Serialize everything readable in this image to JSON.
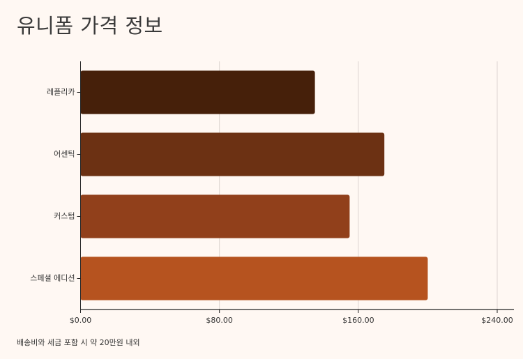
{
  "chart_data": {
    "type": "bar",
    "orientation": "horizontal",
    "title": "유니폼 가격 정보",
    "categories": [
      "레플리카",
      "어센틱",
      "커스텀",
      "스페셜 에디션"
    ],
    "values": [
      135,
      175,
      155,
      200
    ],
    "xlim": [
      0,
      240
    ],
    "xticks": [
      0,
      80,
      160,
      240
    ],
    "xtick_labels": [
      "$0.00",
      "$80.00",
      "$160.00",
      "$240.00"
    ],
    "xlabel": "",
    "ylabel": "",
    "grid": "vertical",
    "colors": [
      "#46200A",
      "#6C3113",
      "#91401B",
      "#B6531F"
    ],
    "footnote": "배송비와 세금 포함 시 약 20만원 내외"
  }
}
